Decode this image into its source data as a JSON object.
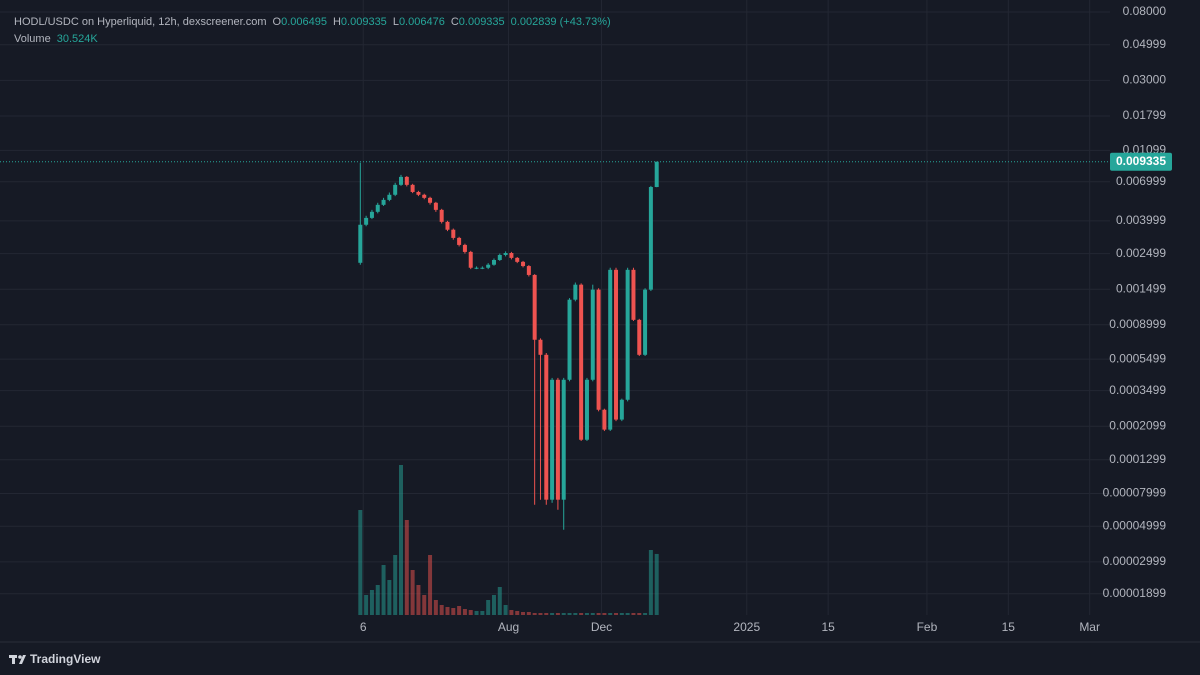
{
  "chart_data": {
    "type": "candlestick",
    "title": "HODL/USDC on Hyperliquid, 12h, dexscreener.com",
    "ohlc_header": [
      {
        "label": "O",
        "value": 0.006495
      },
      {
        "label": "H",
        "value": 0.009335
      },
      {
        "label": "L",
        "value": 0.006476
      },
      {
        "label": "C",
        "value": 0.009335
      }
    ],
    "change": 0.002839,
    "change_pct": {
      "value": 43.73,
      "label": "(+43.73%)"
    },
    "volume_name": "Volume",
    "volume_display": {
      "value": 30524,
      "label": "30.524K"
    },
    "brand": "TradingView",
    "log_scale": true,
    "grid": true,
    "up_color": "#26a69a",
    "down_color": "#ef5350",
    "x": [
      0,
      2,
      4,
      6,
      8,
      10,
      12,
      14,
      16,
      18,
      20,
      22,
      24,
      26,
      28,
      30,
      32,
      34,
      36,
      38,
      40,
      42,
      44,
      46,
      48,
      50,
      52,
      54,
      56,
      58,
      60,
      62,
      64,
      66,
      68,
      70,
      72,
      74,
      76,
      78,
      80,
      82,
      84,
      86,
      88,
      90,
      92,
      94,
      96,
      98,
      100,
      102
    ],
    "open": [
      0.00219,
      0.00378,
      0.00417,
      0.00455,
      0.00503,
      0.0054,
      0.00581,
      0.0067,
      0.00751,
      0.0067,
      0.00605,
      0.00581,
      0.00556,
      0.00518,
      0.00468,
      0.00394,
      0.00352,
      0.00313,
      0.00283,
      0.00256,
      0.00204,
      0.00204,
      0.00204,
      0.00213,
      0.00228,
      0.00245,
      0.00252,
      0.00235,
      0.00222,
      0.00209,
      0.00184,
      0.000726,
      0.000585,
      7.32e-05,
      0.000409,
      7.32e-05,
      0.000409,
      0.00129,
      0.0016,
      0.000173,
      0.000409,
      0.00149,
      0.000266,
      0.0002,
      0.00198,
      0.000231,
      0.000307,
      0.00198,
      0.000966,
      0.000585,
      0.00149,
      0.006495
    ],
    "high": [
      0.0092,
      0.0043,
      0.00468,
      0.00518,
      0.00556,
      0.006,
      0.0069,
      0.00773,
      0.0076,
      0.0068,
      0.00615,
      0.0059,
      0.00565,
      0.00525,
      0.00475,
      0.004,
      0.00358,
      0.00318,
      0.00288,
      0.0026,
      0.00208,
      0.00208,
      0.00218,
      0.00233,
      0.0025,
      0.00258,
      0.00256,
      0.00238,
      0.00225,
      0.00212,
      0.00186,
      0.00074,
      0.0006,
      0.00042,
      0.00042,
      0.00042,
      0.00132,
      0.00165,
      0.00163,
      0.00042,
      0.0016,
      0.00152,
      0.00027,
      0.00204,
      0.00204,
      0.000312,
      0.00204,
      0.00204,
      0.00098,
      0.00152,
      0.0066,
      0.009335
    ],
    "low": [
      0.00213,
      0.0037,
      0.0041,
      0.00445,
      0.00495,
      0.0053,
      0.0057,
      0.0066,
      0.00655,
      0.00595,
      0.0057,
      0.00545,
      0.00505,
      0.00455,
      0.00385,
      0.00345,
      0.00305,
      0.00277,
      0.0025,
      0.002,
      0.002,
      0.002,
      0.002,
      0.0021,
      0.00225,
      0.0024,
      0.0023,
      0.00218,
      0.00205,
      0.0018,
      6.81e-05,
      7.32e-05,
      6.81e-05,
      7e-05,
      6.34e-05,
      4.76e-05,
      0.0004,
      0.00126,
      0.00017,
      0.00017,
      0.0004,
      0.00026,
      0.000196,
      0.000196,
      0.000226,
      0.000226,
      0.0003,
      0.00095,
      0.000575,
      0.000575,
      0.00146,
      0.006476
    ],
    "close": [
      0.00378,
      0.00417,
      0.00455,
      0.00503,
      0.0054,
      0.00581,
      0.0067,
      0.00751,
      0.0067,
      0.00605,
      0.00581,
      0.00556,
      0.00518,
      0.00468,
      0.00394,
      0.00352,
      0.00313,
      0.00283,
      0.00256,
      0.00204,
      0.00204,
      0.00204,
      0.00213,
      0.00228,
      0.00245,
      0.00252,
      0.00235,
      0.00222,
      0.00209,
      0.00184,
      0.000726,
      0.000585,
      7.32e-05,
      0.000409,
      7.32e-05,
      0.000409,
      0.00129,
      0.0016,
      0.000173,
      0.000409,
      0.00149,
      0.000266,
      0.0002,
      0.00198,
      0.000231,
      0.000307,
      0.00198,
      0.000966,
      0.000585,
      0.00149,
      0.006495,
      0.009335
    ],
    "volume": [
      52500,
      10000,
      12500,
      15000,
      25000,
      17500,
      30000,
      75000,
      47500,
      22500,
      15000,
      10000,
      30000,
      7500,
      5000,
      4000,
      3500,
      4500,
      3000,
      2500,
      2000,
      2000,
      7500,
      10000,
      14000,
      5000,
      2500,
      2000,
      1500,
      1500,
      1000,
      1000,
      1000,
      1000,
      1000,
      1000,
      1000,
      1000,
      1000,
      1000,
      1000,
      1000,
      1000,
      1000,
      1000,
      1000,
      1000,
      1000,
      1000,
      1000,
      32500,
      30524
    ],
    "vlim": [
      0,
      150000
    ],
    "xlim": [
      -124,
      258
    ],
    "xticks": [
      {
        "value": 1,
        "label": "6"
      },
      {
        "value": 51,
        "label": "Aug"
      },
      {
        "value": 83,
        "label": "Dec"
      },
      {
        "value": 133,
        "label": "2025"
      },
      {
        "value": 161,
        "label": "15"
      },
      {
        "value": 195,
        "label": "Feb"
      },
      {
        "value": 223,
        "label": "15"
      },
      {
        "value": 251,
        "label": "Mar"
      }
    ],
    "ylim": [
      1.4e-05,
      0.095
    ],
    "yticks": [
      {
        "value": 0.08,
        "label": "0.08000"
      },
      0.04999,
      {
        "value": 0.03,
        "label": "0.03000"
      },
      0.01799,
      0.01099,
      0.006999,
      0.003999,
      0.002499,
      0.001499,
      0.0008999,
      0.0005499,
      0.0003499,
      0.0002099,
      0.0001299,
      7.999e-05,
      4.999e-05,
      2.999e-05,
      1.899e-05
    ]
  }
}
